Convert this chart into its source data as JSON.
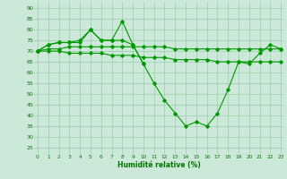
{
  "x": [
    0,
    1,
    2,
    3,
    4,
    5,
    6,
    7,
    8,
    9,
    10,
    11,
    12,
    13,
    14,
    15,
    16,
    17,
    18,
    19,
    20,
    21,
    22,
    23
  ],
  "series_main": [
    70,
    73,
    74,
    74,
    74,
    80,
    75,
    75,
    84,
    73,
    64,
    55,
    47,
    41,
    35,
    37,
    35,
    41,
    52,
    65,
    64,
    69,
    73,
    71
  ],
  "series_partial_x": [
    0,
    1,
    2,
    3,
    4,
    5,
    6,
    7,
    8,
    9,
    10
  ],
  "series_partial_y": [
    70,
    73,
    74,
    74,
    75,
    80,
    75,
    75,
    75,
    73,
    64
  ],
  "series_flat": [
    70,
    71,
    71,
    72,
    72,
    72,
    72,
    72,
    72,
    72,
    72,
    72,
    72,
    71,
    71,
    71,
    71,
    71,
    71,
    71,
    71,
    71,
    71,
    71
  ],
  "series_decline": [
    70,
    70,
    70,
    69,
    69,
    69,
    69,
    68,
    68,
    68,
    67,
    67,
    67,
    66,
    66,
    66,
    66,
    65,
    65,
    65,
    65,
    65,
    65,
    65
  ],
  "bg_color": "#cce8d8",
  "grid_color": "#99ccaa",
  "line_color": "#009900",
  "xlabel": "Humidité relative (%)",
  "xlabel_color": "#007700",
  "ylabel_ticks": [
    25,
    30,
    35,
    40,
    45,
    50,
    55,
    60,
    65,
    70,
    75,
    80,
    85,
    90
  ],
  "ylim": [
    22,
    93
  ],
  "xlim": [
    -0.3,
    23.3
  ]
}
